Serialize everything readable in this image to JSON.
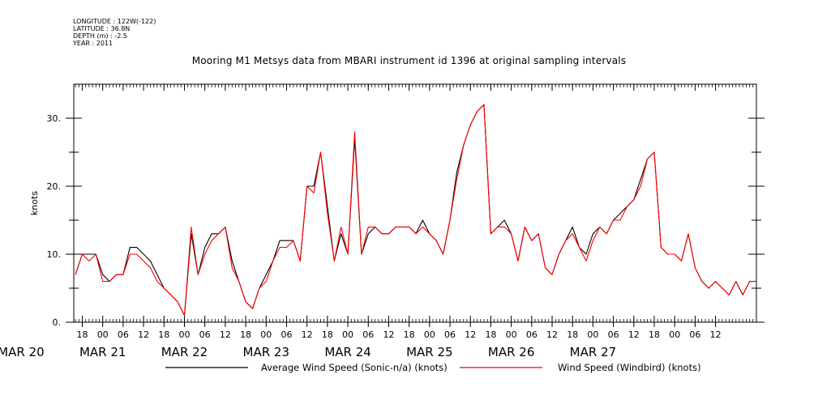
{
  "meta": {
    "longitude": "LONGITUDE : 122W(-122)",
    "latitude": "LATITUDE : 36.8N",
    "depth": "DEPTH (m) : -2.5",
    "year": "YEAR : 2011"
  },
  "chart_data": {
    "type": "line",
    "title": "Mooring M1 Metsys data from MBARI instrument id 1396 at original sampling intervals",
    "ylabel": "knots",
    "xlabel": "",
    "ylim": [
      0,
      35
    ],
    "xlim_hours": [
      15.5,
      216
    ],
    "yticks": [
      "0.",
      "10.",
      "20.",
      "30."
    ],
    "x_hour_ticks": [
      "18",
      "00",
      "06",
      "12",
      "18",
      "00",
      "06",
      "12",
      "18",
      "00",
      "06",
      "12",
      "18",
      "00",
      "06",
      "12",
      "18",
      "00",
      "06",
      "12",
      "18",
      "00",
      "06",
      "12",
      "18",
      "00",
      "06",
      "12",
      "18",
      "00",
      "06",
      "12"
    ],
    "date_labels": [
      "MAR 20",
      "MAR 21",
      "MAR 22",
      "MAR 23",
      "MAR 24",
      "MAR 25",
      "MAR 26",
      "MAR 27"
    ],
    "grid": false,
    "legend_position": "bottom",
    "x_units": "hours since MAR 20 00:00",
    "x": [
      16,
      18,
      20,
      22,
      24,
      26,
      28,
      30,
      32,
      34,
      36,
      38,
      40,
      42,
      44,
      46,
      48,
      50,
      52,
      54,
      56,
      58,
      60,
      62,
      64,
      66,
      68,
      70,
      72,
      74,
      76,
      78,
      80,
      82,
      84,
      86,
      88,
      90,
      92,
      94,
      96,
      98,
      100,
      102,
      104,
      106,
      108,
      110,
      112,
      114,
      116,
      118,
      120,
      122,
      124,
      126,
      128,
      130,
      132,
      134,
      136,
      138,
      140,
      142,
      144,
      146,
      148,
      150,
      152,
      154,
      156,
      158,
      160,
      162,
      164,
      166,
      168,
      170,
      172,
      174,
      176,
      178,
      180,
      182,
      184,
      186,
      188,
      190,
      192,
      194,
      196,
      198,
      200,
      202,
      204,
      206,
      208,
      210,
      212,
      214,
      216
    ],
    "series": [
      {
        "name": "Average Wind Speed (Sonic-n/a) (knots)",
        "color": "#000000",
        "values": [
          7,
          10,
          10,
          10,
          7,
          6,
          7,
          7,
          11,
          11,
          10,
          9,
          7,
          5,
          4,
          3,
          1,
          13,
          7,
          11,
          13,
          13,
          14,
          9,
          6,
          3,
          2,
          5,
          7,
          9,
          12,
          12,
          12,
          9,
          20,
          20,
          25,
          17,
          9,
          13,
          10,
          27,
          10,
          13,
          14,
          13,
          13,
          14,
          14,
          14,
          13,
          15,
          13,
          12,
          10,
          15,
          22,
          26,
          29,
          31,
          32,
          13,
          14,
          15,
          13,
          9,
          14,
          12,
          13,
          8,
          7,
          10,
          12,
          14,
          11,
          10,
          13,
          14,
          13,
          15,
          16,
          17,
          18,
          21,
          24,
          25,
          11,
          10,
          10,
          9,
          13,
          8,
          6,
          5,
          6,
          5,
          4,
          6,
          4,
          6,
          6
        ]
      },
      {
        "name": "Wind Speed (Windbird) (knots)",
        "color": "#ff0000",
        "values": [
          7,
          10,
          9,
          10,
          6,
          6,
          7,
          7,
          10,
          10,
          9,
          8,
          6,
          5,
          4,
          3,
          1,
          14,
          7,
          10,
          12,
          13,
          14,
          8,
          6,
          3,
          2,
          5,
          6,
          9,
          11,
          11,
          12,
          9,
          20,
          19,
          25,
          16,
          9,
          14,
          10,
          28,
          10,
          14,
          14,
          13,
          13,
          14,
          14,
          14,
          13,
          14,
          13,
          12,
          10,
          15,
          21,
          26,
          29,
          31,
          32,
          13,
          14,
          14,
          13,
          9,
          14,
          12,
          13,
          8,
          7,
          10,
          12,
          13,
          11,
          9,
          12,
          14,
          13,
          15,
          15,
          17,
          18,
          20,
          24,
          25,
          11,
          10,
          10,
          9,
          13,
          8,
          6,
          5,
          6,
          5,
          4,
          6,
          4,
          6,
          6
        ]
      }
    ]
  }
}
